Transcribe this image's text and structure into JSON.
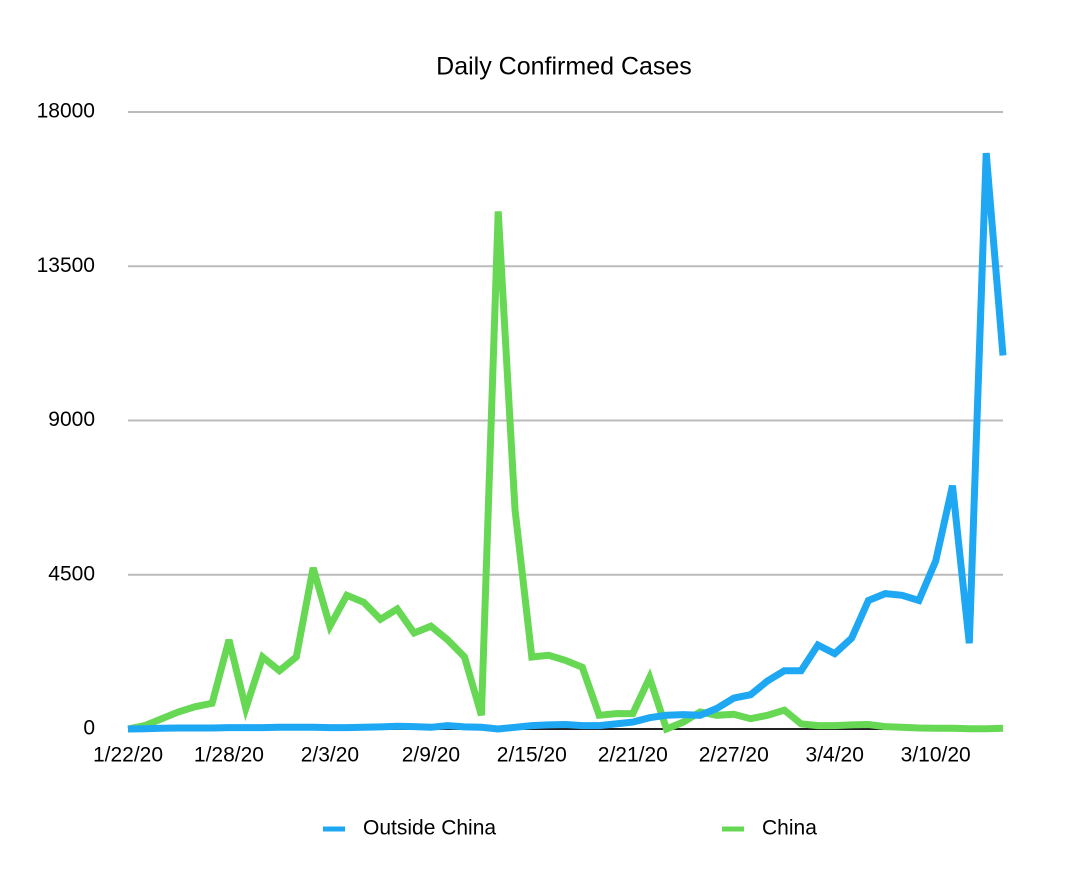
{
  "chart_data": {
    "type": "line",
    "title": "Daily Confirmed Cases",
    "categories": [
      "1/22/20",
      null,
      null,
      null,
      null,
      null,
      "1/28/20",
      null,
      null,
      null,
      null,
      null,
      "2/3/20",
      null,
      null,
      null,
      null,
      null,
      "2/9/20",
      null,
      null,
      null,
      null,
      null,
      "2/15/20",
      null,
      null,
      null,
      null,
      null,
      "2/21/20",
      null,
      null,
      null,
      null,
      null,
      "2/27/20",
      null,
      null,
      null,
      null,
      null,
      "3/4/20",
      null,
      null,
      null,
      null,
      null,
      "3/10/20",
      null,
      null,
      null,
      null
    ],
    "series": [
      {
        "name": "Outside China",
        "color": "#1ea7f2",
        "values": [
          0,
          10,
          20,
          30,
          30,
          30,
          40,
          40,
          40,
          50,
          50,
          50,
          40,
          40,
          50,
          60,
          80,
          70,
          50,
          100,
          60,
          50,
          0,
          50,
          100,
          120,
          130,
          100,
          100,
          150,
          200,
          330,
          400,
          420,
          400,
          600,
          900,
          1000,
          1400,
          1700,
          1700,
          2450,
          2200,
          2650,
          3750,
          3950,
          3900,
          3750,
          4900,
          7100,
          2500,
          16800,
          10900
        ]
      },
      {
        "name": "China",
        "color": "#66d854",
        "values": [
          0,
          100,
          300,
          500,
          650,
          750,
          2600,
          600,
          2100,
          1700,
          2100,
          4700,
          3000,
          3900,
          3700,
          3200,
          3500,
          2800,
          3000,
          2600,
          2100,
          400,
          15100,
          6400,
          2100,
          2150,
          2000,
          1800,
          400,
          450,
          450,
          1500,
          0,
          200,
          500,
          400,
          430,
          300,
          400,
          550,
          150,
          100,
          100,
          120,
          130,
          70,
          50,
          30,
          20,
          20,
          10,
          10,
          20
        ]
      }
    ],
    "ylim": [
      0,
      18000
    ],
    "yticks": [
      0,
      4500,
      9000,
      13500,
      18000
    ],
    "grid": true,
    "legend": "bottom"
  }
}
